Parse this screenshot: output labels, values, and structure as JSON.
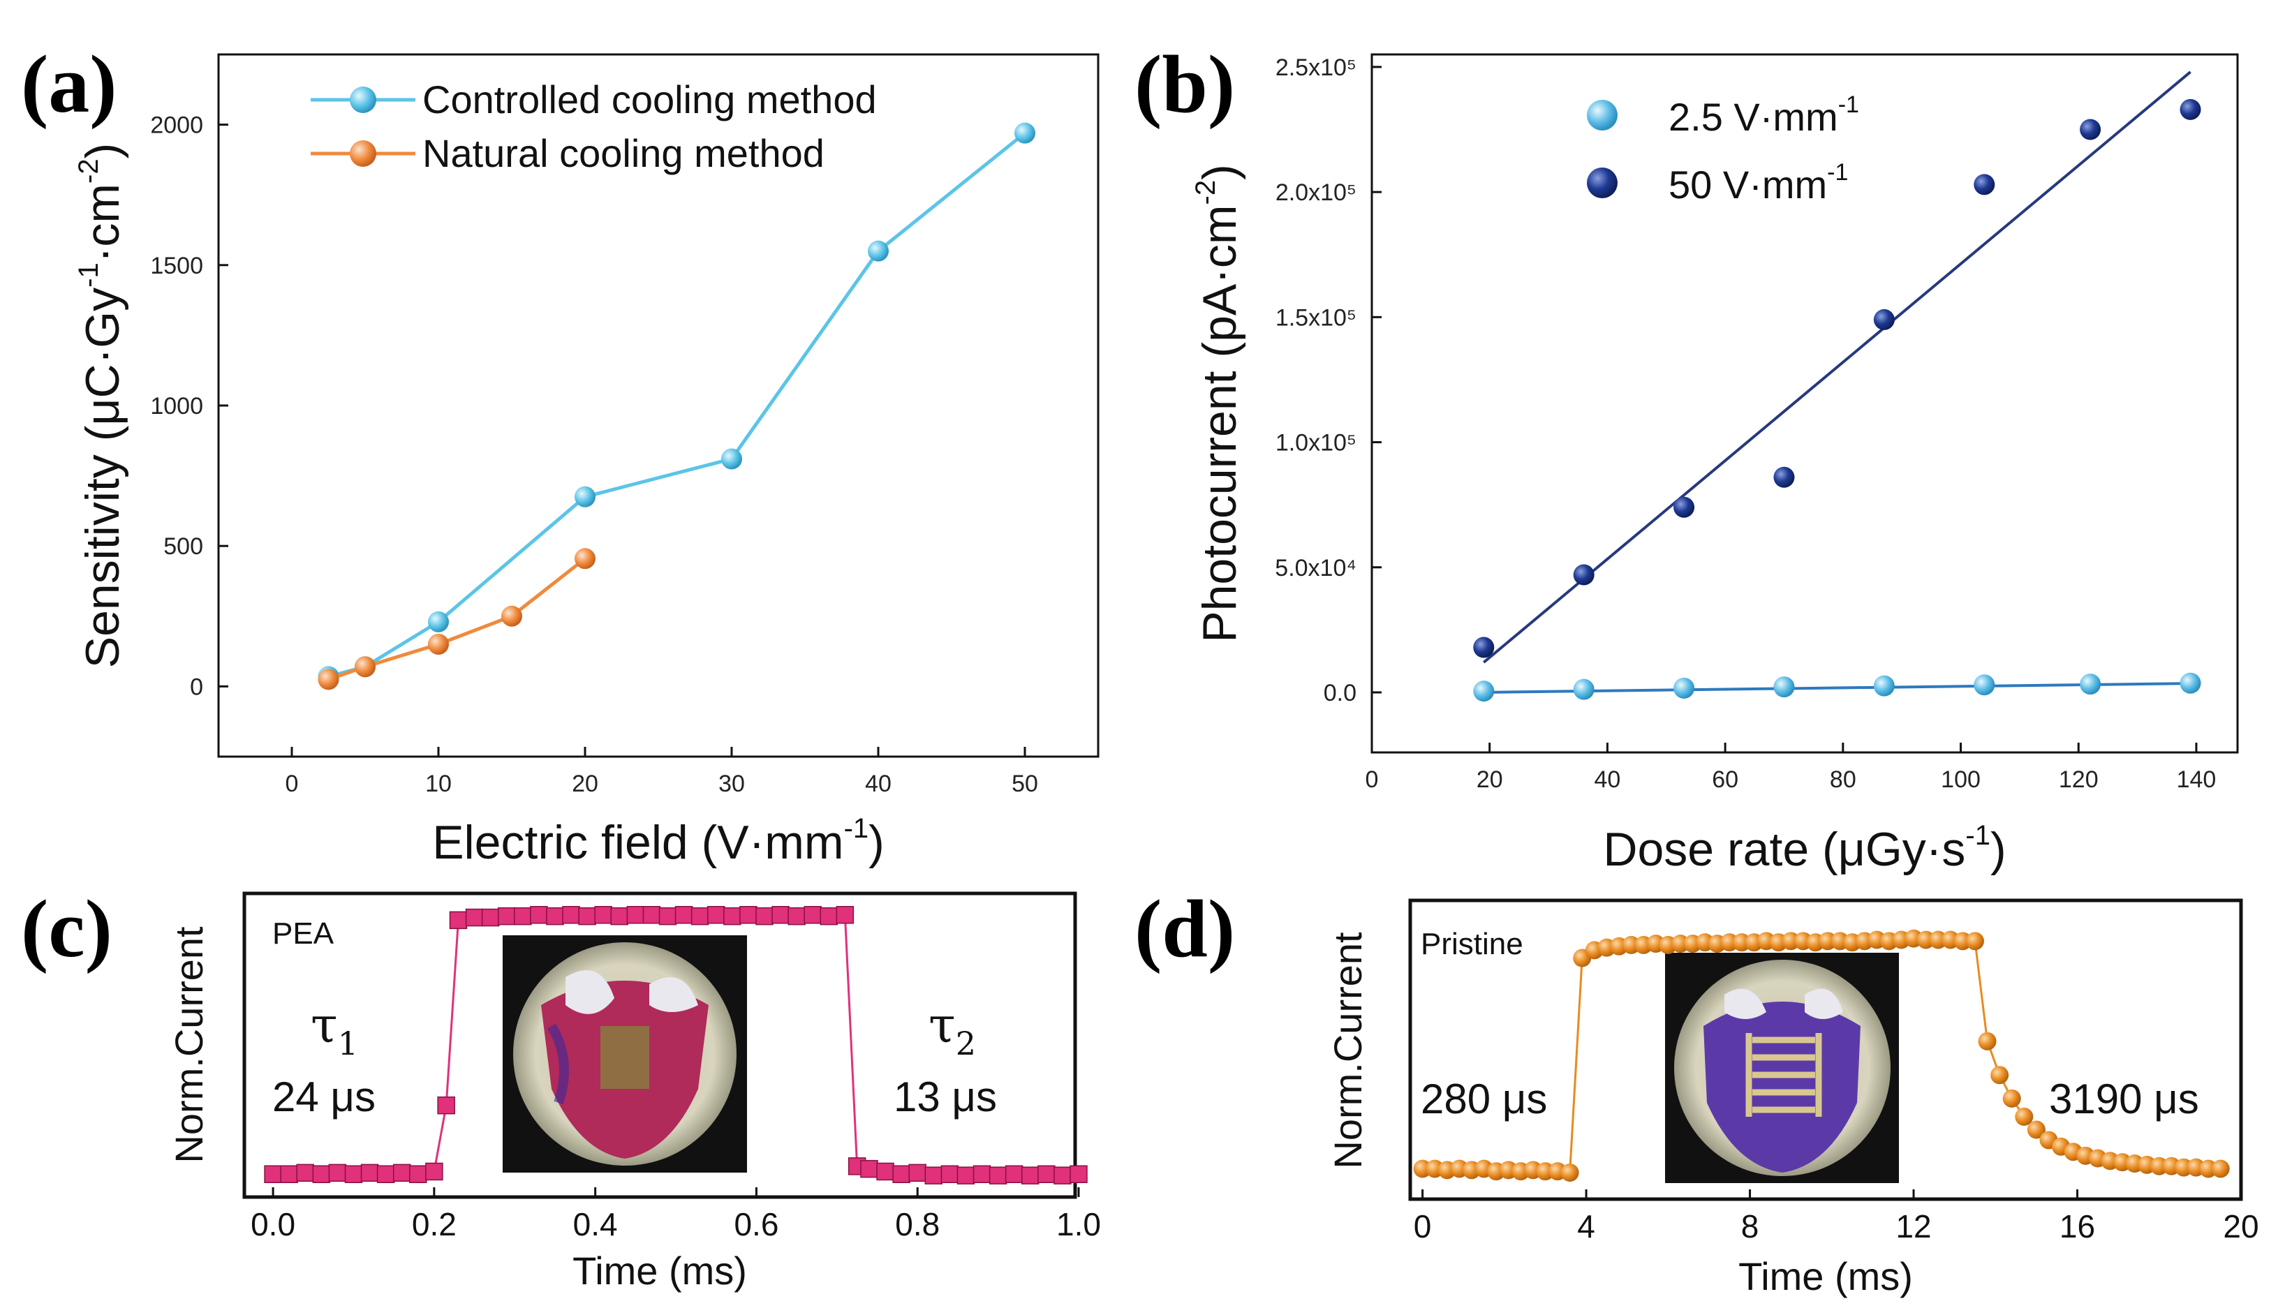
{
  "colors": {
    "controlled": "#5bc4e8",
    "natural": "#f08a3c",
    "low_field": "#5bbce6",
    "high_field": "#1f3a93",
    "fit_high": "#26397f",
    "fit_low": "#2d79bf",
    "pea": "#e0317a",
    "pristine": "#e88a1f"
  },
  "chart_data": [
    {
      "panel": "(a)",
      "type": "line",
      "xlabel": "Electric field (V·mm⁻¹)",
      "ylabel": "Sensitivity (μC·Gy⁻¹·cm⁻²)",
      "xlim": [
        -5,
        55
      ],
      "ylim": [
        -250,
        2250
      ],
      "xticks": [
        "0",
        "10",
        "20",
        "30",
        "40",
        "50"
      ],
      "yticks": [
        "0",
        "500",
        "1000",
        "1500",
        "2000"
      ],
      "legend_position": "top-left",
      "series": [
        {
          "name": "Controlled cooling method",
          "x": [
            2.5,
            5,
            10,
            20,
            30,
            40,
            50
          ],
          "values": [
            35,
            70,
            230,
            675,
            810,
            1550,
            1970
          ]
        },
        {
          "name": "Natural cooling method",
          "x": [
            2.5,
            5,
            10,
            15,
            20
          ],
          "values": [
            25,
            70,
            150,
            250,
            455
          ]
        }
      ]
    },
    {
      "panel": "(b)",
      "type": "scatter",
      "xlabel": "Dose rate (μGy·s⁻¹)",
      "ylabel": "Photocurrent (pA·cm⁻²)",
      "xlim": [
        0,
        147
      ],
      "ylim": [
        -24000,
        255000
      ],
      "xticks": [
        "0",
        "20",
        "40",
        "60",
        "80",
        "100",
        "120",
        "140"
      ],
      "yticks": [
        "0.0",
        "5.0x10⁴",
        "1.0x10⁵",
        "1.5x10⁵",
        "2.0x10⁵",
        "2.5x10⁵"
      ],
      "legend_position": "top-left",
      "series": [
        {
          "name": "2.5 V·mm⁻¹",
          "x": [
            19,
            36,
            53,
            70,
            87,
            104,
            122,
            139
          ],
          "values": [
            500,
            1200,
            1700,
            2200,
            2600,
            3000,
            3300,
            3700
          ],
          "fit": [
            [
              19,
              0
            ],
            [
              139,
              3600
            ]
          ]
        },
        {
          "name": "50  V·mm⁻¹",
          "x": [
            19,
            36,
            53,
            70,
            87,
            104,
            122,
            139
          ],
          "values": [
            18000,
            47000,
            74000,
            86000,
            149000,
            203000,
            225000,
            233000
          ],
          "fit": [
            [
              19,
              12000
            ],
            [
              139,
              248000
            ]
          ]
        }
      ]
    },
    {
      "panel": "(c)",
      "type": "line",
      "xlabel": "Time (ms)",
      "ylabel": "Norm.Current",
      "xlim": [
        -0.02,
        1.0
      ],
      "ylim": [
        0,
        1.1
      ],
      "xticks": [
        "0.0",
        "0.2",
        "0.4",
        "0.6",
        "0.8",
        "1.0"
      ],
      "sample_label": "PEA",
      "rise_label": "τ₁",
      "rise_time": "24 μs",
      "fall_label": "τ₂",
      "fall_time": "13 μs",
      "series": [
        {
          "name": "PEA",
          "x": [
            0.0,
            0.02,
            0.04,
            0.06,
            0.08,
            0.1,
            0.12,
            0.14,
            0.16,
            0.18,
            0.2,
            0.215,
            0.23,
            0.25,
            0.27,
            0.29,
            0.31,
            0.33,
            0.35,
            0.37,
            0.39,
            0.41,
            0.43,
            0.45,
            0.47,
            0.49,
            0.51,
            0.53,
            0.55,
            0.57,
            0.59,
            0.61,
            0.63,
            0.65,
            0.67,
            0.69,
            0.71,
            0.725,
            0.74,
            0.76,
            0.78,
            0.8,
            0.82,
            0.84,
            0.86,
            0.88,
            0.9,
            0.92,
            0.94,
            0.96,
            0.98,
            1.0
          ],
          "values": [
            0.06,
            0.06,
            0.065,
            0.06,
            0.065,
            0.06,
            0.065,
            0.06,
            0.065,
            0.06,
            0.07,
            0.32,
            1.02,
            1.03,
            1.03,
            1.035,
            1.035,
            1.04,
            1.035,
            1.04,
            1.035,
            1.04,
            1.035,
            1.04,
            1.04,
            1.035,
            1.04,
            1.035,
            1.04,
            1.035,
            1.04,
            1.035,
            1.04,
            1.035,
            1.04,
            1.035,
            1.04,
            0.09,
            0.08,
            0.07,
            0.06,
            0.065,
            0.055,
            0.06,
            0.055,
            0.06,
            0.055,
            0.06,
            0.055,
            0.06,
            0.055,
            0.06
          ]
        }
      ]
    },
    {
      "panel": "(d)",
      "type": "line",
      "xlabel": "Time (ms)",
      "ylabel": "Norm.Current",
      "xlim": [
        -0.3,
        20
      ],
      "ylim": [
        0,
        1.1
      ],
      "xticks": [
        "0",
        "4",
        "8",
        "12",
        "16",
        "20"
      ],
      "sample_label": "Pristine",
      "rise_time": "280 μs",
      "fall_time": "3190 μs",
      "series": [
        {
          "name": "Pristine",
          "x": [
            0.0,
            0.3,
            0.6,
            0.9,
            1.2,
            1.5,
            1.8,
            2.1,
            2.4,
            2.7,
            3.0,
            3.3,
            3.6,
            3.9,
            4.2,
            4.5,
            4.8,
            5.1,
            5.4,
            5.7,
            6.0,
            6.3,
            6.6,
            6.9,
            7.2,
            7.5,
            7.8,
            8.1,
            8.4,
            8.7,
            9.0,
            9.3,
            9.6,
            9.9,
            10.2,
            10.5,
            10.8,
            11.1,
            11.4,
            11.7,
            12.0,
            12.3,
            12.6,
            12.9,
            13.2,
            13.5,
            13.8,
            14.1,
            14.4,
            14.7,
            15.0,
            15.3,
            15.6,
            15.9,
            16.2,
            16.5,
            16.8,
            17.1,
            17.4,
            17.7,
            18.0,
            18.3,
            18.6,
            18.9,
            19.2,
            19.5
          ],
          "values": [
            0.09,
            0.09,
            0.085,
            0.09,
            0.085,
            0.09,
            0.08,
            0.085,
            0.08,
            0.085,
            0.08,
            0.08,
            0.075,
            0.9,
            0.93,
            0.94,
            0.945,
            0.95,
            0.95,
            0.955,
            0.95,
            0.955,
            0.955,
            0.96,
            0.955,
            0.96,
            0.96,
            0.96,
            0.965,
            0.96,
            0.965,
            0.965,
            0.96,
            0.965,
            0.965,
            0.96,
            0.965,
            0.97,
            0.965,
            0.97,
            0.975,
            0.97,
            0.97,
            0.97,
            0.965,
            0.965,
            0.58,
            0.45,
            0.36,
            0.29,
            0.24,
            0.2,
            0.175,
            0.155,
            0.14,
            0.13,
            0.12,
            0.115,
            0.11,
            0.105,
            0.1,
            0.1,
            0.095,
            0.095,
            0.09,
            0.09
          ]
        }
      ]
    }
  ]
}
